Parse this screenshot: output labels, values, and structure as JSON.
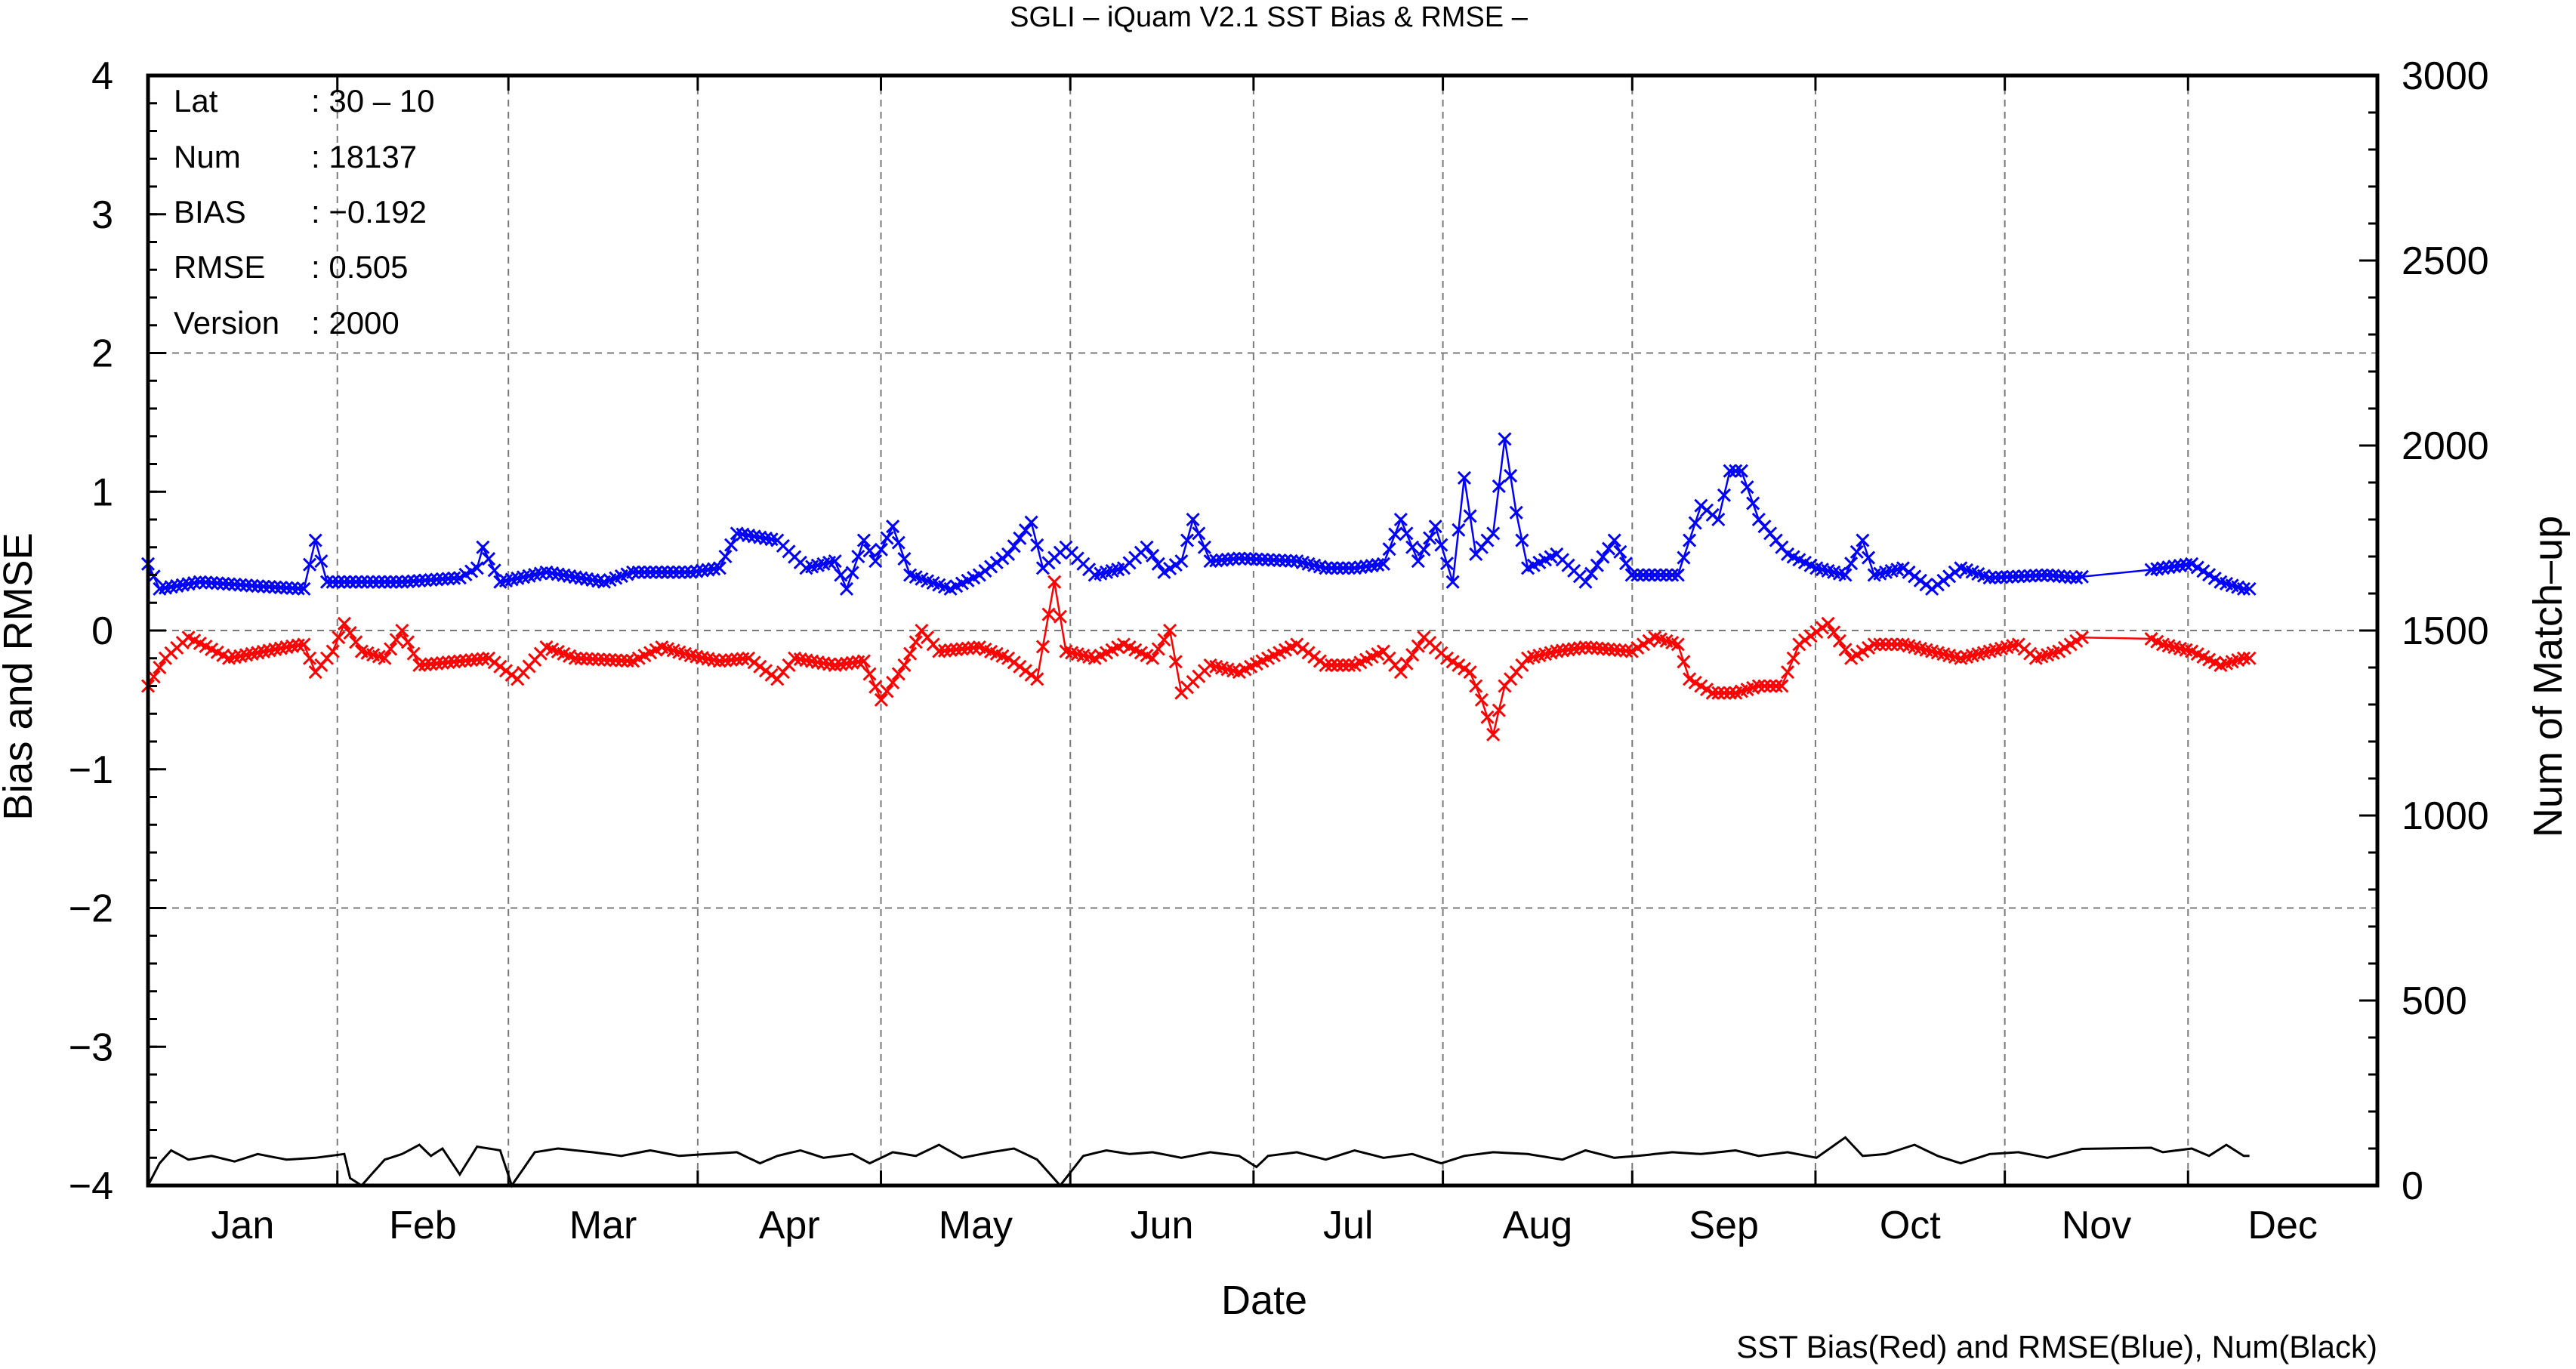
{
  "chart_data": {
    "type": "line",
    "title": "SGLI – iQuam V2.1 SST Bias & RMSE  –",
    "xlabel": "Date",
    "ylabel": "Bias and RMSE",
    "y2label": "Num of Match–up",
    "footer": "SST Bias(Red) and RMSE(Blue), Num(Black)",
    "months": [
      "Jan",
      "Feb",
      "Mar",
      "Apr",
      "May",
      "Jun",
      "Jul",
      "Aug",
      "Sep",
      "Oct",
      "Nov",
      "Dec"
    ],
    "x_range_days": [
      1,
      366
    ],
    "ylim": [
      -4,
      4
    ],
    "yticks": [
      "4",
      "3",
      "2",
      "1",
      "0",
      "−1",
      "−2",
      "−3",
      "−4"
    ],
    "y2lim": [
      0,
      3000
    ],
    "y2ticks": [
      "0",
      "500",
      "1000",
      "1500",
      "2000",
      "2500",
      "3000"
    ],
    "grid": true,
    "info_box": {
      "lat_label": "Lat",
      "lat_value": ": 30 – 10",
      "num_label": "Num",
      "num_value": ": 18137",
      "bias_label": "BIAS",
      "bias_value": ": −0.192",
      "rmse_label": "RMSE",
      "rmse_value": ": 0.505",
      "version_label": "Version",
      "version_value": ": 2000"
    },
    "series": [
      {
        "name": "RMSE",
        "color": "#0000ff",
        "marker": "x",
        "axis": "left",
        "keypoints": [
          [
            1,
            0.48
          ],
          [
            3,
            0.3
          ],
          [
            10,
            0.35
          ],
          [
            20,
            0.32
          ],
          [
            28,
            0.3
          ],
          [
            30,
            0.65
          ],
          [
            32,
            0.35
          ],
          [
            45,
            0.35
          ],
          [
            55,
            0.38
          ],
          [
            58,
            0.45
          ],
          [
            59,
            0.6
          ],
          [
            62,
            0.35
          ],
          [
            70,
            0.42
          ],
          [
            80,
            0.35
          ],
          [
            85,
            0.42
          ],
          [
            95,
            0.42
          ],
          [
            100,
            0.45
          ],
          [
            103,
            0.7
          ],
          [
            110,
            0.65
          ],
          [
            115,
            0.45
          ],
          [
            120,
            0.5
          ],
          [
            122,
            0.3
          ],
          [
            125,
            0.65
          ],
          [
            127,
            0.5
          ],
          [
            130,
            0.75
          ],
          [
            133,
            0.4
          ],
          [
            140,
            0.3
          ],
          [
            145,
            0.4
          ],
          [
            150,
            0.55
          ],
          [
            154,
            0.78
          ],
          [
            156,
            0.45
          ],
          [
            160,
            0.6
          ],
          [
            165,
            0.4
          ],
          [
            170,
            0.45
          ],
          [
            174,
            0.6
          ],
          [
            177,
            0.42
          ],
          [
            180,
            0.5
          ],
          [
            182,
            0.8
          ],
          [
            185,
            0.5
          ],
          [
            190,
            0.52
          ],
          [
            200,
            0.5
          ],
          [
            205,
            0.45
          ],
          [
            210,
            0.45
          ],
          [
            215,
            0.48
          ],
          [
            218,
            0.8
          ],
          [
            221,
            0.5
          ],
          [
            224,
            0.75
          ],
          [
            227,
            0.35
          ],
          [
            229,
            1.1
          ],
          [
            231,
            0.55
          ],
          [
            234,
            0.7
          ],
          [
            236,
            1.38
          ],
          [
            238,
            0.85
          ],
          [
            240,
            0.45
          ],
          [
            245,
            0.55
          ],
          [
            250,
            0.35
          ],
          [
            255,
            0.65
          ],
          [
            258,
            0.4
          ],
          [
            266,
            0.4
          ],
          [
            270,
            0.9
          ],
          [
            273,
            0.8
          ],
          [
            275,
            1.15
          ],
          [
            277,
            1.15
          ],
          [
            280,
            0.8
          ],
          [
            285,
            0.55
          ],
          [
            290,
            0.45
          ],
          [
            295,
            0.4
          ],
          [
            298,
            0.65
          ],
          [
            300,
            0.4
          ],
          [
            305,
            0.45
          ],
          [
            310,
            0.3
          ],
          [
            315,
            0.45
          ],
          [
            320,
            0.38
          ],
          [
            330,
            0.4
          ],
          [
            335,
            0.38
          ],
          [
            340,
            0.42
          ],
          [
            343,
            0.55
          ],
          [
            345,
            0.42
          ],
          [
            350,
            0.45
          ],
          [
            355,
            0.48
          ],
          [
            360,
            0.35
          ],
          [
            364,
            0.3
          ],
          [
            366,
            0.3
          ]
        ]
      },
      {
        "name": "Bias",
        "color": "#ff0000",
        "marker": "x",
        "axis": "left",
        "keypoints": [
          [
            1,
            -0.4
          ],
          [
            4,
            -0.2
          ],
          [
            8,
            -0.05
          ],
          [
            15,
            -0.2
          ],
          [
            25,
            -0.12
          ],
          [
            28,
            -0.1
          ],
          [
            30,
            -0.3
          ],
          [
            33,
            -0.15
          ],
          [
            35,
            0.05
          ],
          [
            38,
            -0.15
          ],
          [
            42,
            -0.2
          ],
          [
            45,
            0.0
          ],
          [
            48,
            -0.25
          ],
          [
            60,
            -0.2
          ],
          [
            65,
            -0.35
          ],
          [
            70,
            -0.12
          ],
          [
            75,
            -0.2
          ],
          [
            85,
            -0.22
          ],
          [
            90,
            -0.12
          ],
          [
            95,
            -0.18
          ],
          [
            100,
            -0.22
          ],
          [
            105,
            -0.2
          ],
          [
            110,
            -0.35
          ],
          [
            113,
            -0.2
          ],
          [
            120,
            -0.25
          ],
          [
            125,
            -0.22
          ],
          [
            128,
            -0.5
          ],
          [
            132,
            -0.25
          ],
          [
            135,
            0.0
          ],
          [
            138,
            -0.15
          ],
          [
            145,
            -0.12
          ],
          [
            150,
            -0.2
          ],
          [
            155,
            -0.35
          ],
          [
            158,
            0.35
          ],
          [
            160,
            -0.15
          ],
          [
            165,
            -0.2
          ],
          [
            170,
            -0.1
          ],
          [
            175,
            -0.2
          ],
          [
            178,
            0.0
          ],
          [
            180,
            -0.45
          ],
          [
            185,
            -0.25
          ],
          [
            190,
            -0.3
          ],
          [
            195,
            -0.2
          ],
          [
            200,
            -0.1
          ],
          [
            205,
            -0.25
          ],
          [
            210,
            -0.25
          ],
          [
            215,
            -0.15
          ],
          [
            218,
            -0.3
          ],
          [
            222,
            -0.05
          ],
          [
            226,
            -0.2
          ],
          [
            230,
            -0.3
          ],
          [
            232,
            -0.5
          ],
          [
            234,
            -0.75
          ],
          [
            236,
            -0.4
          ],
          [
            240,
            -0.2
          ],
          [
            245,
            -0.15
          ],
          [
            250,
            -0.12
          ],
          [
            258,
            -0.15
          ],
          [
            262,
            -0.05
          ],
          [
            266,
            -0.1
          ],
          [
            268,
            -0.35
          ],
          [
            272,
            -0.45
          ],
          [
            276,
            -0.45
          ],
          [
            280,
            -0.4
          ],
          [
            284,
            -0.4
          ],
          [
            287,
            -0.1
          ],
          [
            292,
            0.05
          ],
          [
            296,
            -0.2
          ],
          [
            300,
            -0.1
          ],
          [
            305,
            -0.1
          ],
          [
            310,
            -0.15
          ],
          [
            315,
            -0.2
          ],
          [
            320,
            -0.15
          ],
          [
            325,
            -0.1
          ],
          [
            328,
            -0.2
          ],
          [
            332,
            -0.15
          ],
          [
            336,
            -0.05
          ],
          [
            338,
            -0.3
          ],
          [
            340,
            -0.1
          ],
          [
            345,
            0.0
          ],
          [
            350,
            -0.1
          ],
          [
            355,
            -0.15
          ],
          [
            360,
            -0.25
          ],
          [
            364,
            -0.2
          ],
          [
            366,
            -0.2
          ]
        ]
      },
      {
        "name": "Num",
        "color": "#000000",
        "marker": "none",
        "axis": "right",
        "keypoints": [
          [
            1,
            0
          ],
          [
            3,
            60
          ],
          [
            5,
            95
          ],
          [
            8,
            70
          ],
          [
            12,
            80
          ],
          [
            16,
            65
          ],
          [
            20,
            85
          ],
          [
            25,
            70
          ],
          [
            30,
            75
          ],
          [
            35,
            85
          ],
          [
            36,
            20
          ],
          [
            38,
            0
          ],
          [
            42,
            70
          ],
          [
            45,
            85
          ],
          [
            48,
            110
          ],
          [
            50,
            80
          ],
          [
            52,
            100
          ],
          [
            55,
            30
          ],
          [
            58,
            105
          ],
          [
            62,
            95
          ],
          [
            64,
            0
          ],
          [
            68,
            90
          ],
          [
            72,
            100
          ],
          [
            78,
            90
          ],
          [
            83,
            80
          ],
          [
            88,
            95
          ],
          [
            93,
            80
          ],
          [
            98,
            85
          ],
          [
            103,
            90
          ],
          [
            107,
            60
          ],
          [
            110,
            80
          ],
          [
            114,
            95
          ],
          [
            118,
            75
          ],
          [
            123,
            85
          ],
          [
            126,
            60
          ],
          [
            130,
            90
          ],
          [
            134,
            80
          ],
          [
            138,
            110
          ],
          [
            142,
            75
          ],
          [
            147,
            90
          ],
          [
            151,
            100
          ],
          [
            155,
            70
          ],
          [
            159,
            0
          ],
          [
            163,
            80
          ],
          [
            167,
            95
          ],
          [
            171,
            85
          ],
          [
            175,
            90
          ],
          [
            180,
            75
          ],
          [
            185,
            90
          ],
          [
            190,
            80
          ],
          [
            193,
            50
          ],
          [
            195,
            80
          ],
          [
            200,
            90
          ],
          [
            205,
            70
          ],
          [
            210,
            95
          ],
          [
            215,
            75
          ],
          [
            220,
            85
          ],
          [
            225,
            60
          ],
          [
            229,
            80
          ],
          [
            234,
            90
          ],
          [
            240,
            85
          ],
          [
            246,
            70
          ],
          [
            250,
            95
          ],
          [
            255,
            75
          ],
          [
            259,
            80
          ],
          [
            265,
            90
          ],
          [
            270,
            85
          ],
          [
            276,
            95
          ],
          [
            280,
            80
          ],
          [
            285,
            90
          ],
          [
            290,
            75
          ],
          [
            295,
            130
          ],
          [
            298,
            80
          ],
          [
            302,
            85
          ],
          [
            307,
            110
          ],
          [
            311,
            80
          ],
          [
            315,
            60
          ],
          [
            320,
            85
          ],
          [
            325,
            90
          ],
          [
            330,
            75
          ],
          [
            335,
            95
          ],
          [
            340,
            115
          ],
          [
            345,
            120
          ],
          [
            350,
            90
          ],
          [
            355,
            100
          ],
          [
            358,
            80
          ],
          [
            361,
            110
          ],
          [
            364,
            80
          ],
          [
            366,
            80
          ]
        ]
      }
    ]
  }
}
